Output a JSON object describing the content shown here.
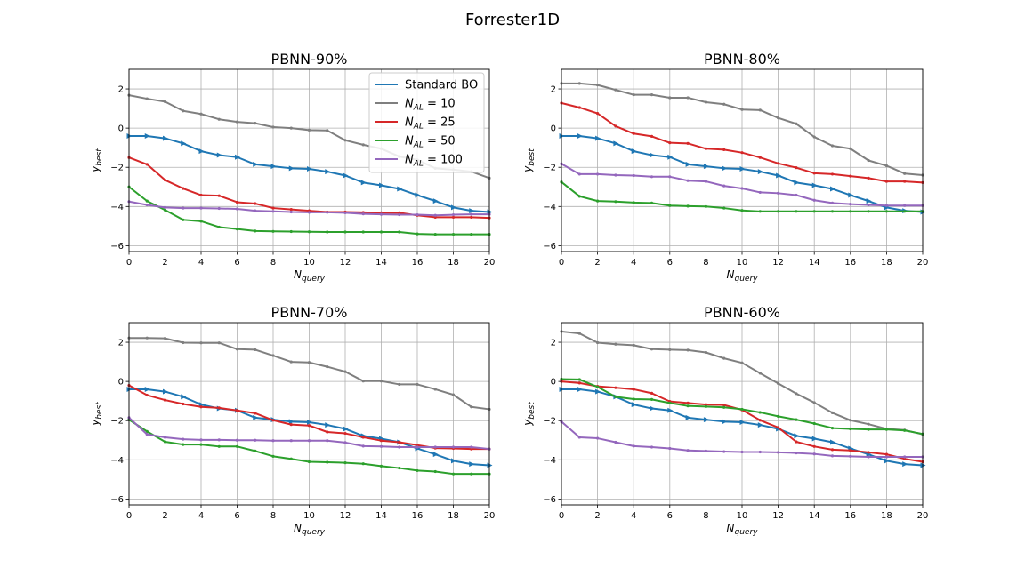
{
  "figure_title": "Forrester1D",
  "colors": {
    "standard_bo": "#1f77b4",
    "n10": "#7f7f7f",
    "n25": "#d62728",
    "n50": "#2ca02c",
    "n100": "#9467bd",
    "grid": "#b0b0b0"
  },
  "chart_data": [
    {
      "type": "line",
      "title": "PBNN-90%",
      "xlabel": "N_query",
      "ylabel": "y_best",
      "xlim": [
        0,
        20
      ],
      "ylim": [
        -6.3,
        3.0
      ],
      "xticks": [
        0,
        2,
        4,
        6,
        8,
        10,
        12,
        14,
        16,
        18,
        20
      ],
      "yticks": [
        -6,
        -4,
        -2,
        0,
        2
      ],
      "grid": true,
      "legend": "top-right",
      "x": [
        0,
        1,
        2,
        3,
        4,
        5,
        6,
        7,
        8,
        9,
        10,
        11,
        12,
        13,
        14,
        15,
        16,
        17,
        18,
        19,
        20
      ],
      "series": [
        {
          "key": "standard_bo",
          "name": "Standard BO",
          "marker": "triangle",
          "values": [
            -0.4,
            -0.4,
            -0.52,
            -0.78,
            -1.18,
            -1.38,
            -1.48,
            -1.85,
            -1.95,
            -2.05,
            -2.08,
            -2.22,
            -2.42,
            -2.78,
            -2.92,
            -3.1,
            -3.42,
            -3.72,
            -4.05,
            -4.22,
            -4.28
          ]
        },
        {
          "key": "n10",
          "name": "N_AL = 10",
          "marker": "dot",
          "values": [
            1.68,
            1.5,
            1.35,
            0.88,
            0.72,
            0.45,
            0.32,
            0.25,
            0.05,
            0.0,
            -0.1,
            -0.12,
            -0.62,
            -0.85,
            -1.05,
            -1.45,
            -1.62,
            -2.05,
            -2.12,
            -2.22,
            -2.55
          ]
        },
        {
          "key": "n25",
          "name": "N_AL = 25",
          "marker": "dot",
          "values": [
            -1.5,
            -1.85,
            -2.65,
            -3.08,
            -3.42,
            -3.45,
            -3.78,
            -3.85,
            -4.08,
            -4.15,
            -4.22,
            -4.28,
            -4.28,
            -4.3,
            -4.32,
            -4.32,
            -4.45,
            -4.55,
            -4.55,
            -4.55,
            -4.58
          ]
        },
        {
          "key": "n50",
          "name": "N_AL = 50",
          "marker": "dot",
          "values": [
            -3.0,
            -3.72,
            -4.18,
            -4.68,
            -4.75,
            -5.05,
            -5.15,
            -5.25,
            -5.27,
            -5.28,
            -5.29,
            -5.3,
            -5.3,
            -5.3,
            -5.3,
            -5.3,
            -5.4,
            -5.42,
            -5.42,
            -5.42,
            -5.42
          ]
        },
        {
          "key": "n100",
          "name": "N_AL = 100",
          "marker": "dot",
          "values": [
            -3.75,
            -3.92,
            -4.05,
            -4.08,
            -4.08,
            -4.1,
            -4.12,
            -4.22,
            -4.25,
            -4.28,
            -4.3,
            -4.3,
            -4.32,
            -4.38,
            -4.4,
            -4.42,
            -4.42,
            -4.45,
            -4.42,
            -4.4,
            -4.4
          ]
        }
      ]
    },
    {
      "type": "line",
      "title": "PBNN-80%",
      "xlabel": "N_query",
      "ylabel": "y_best",
      "xlim": [
        0,
        20
      ],
      "ylim": [
        -6.3,
        3.0
      ],
      "xticks": [
        0,
        2,
        4,
        6,
        8,
        10,
        12,
        14,
        16,
        18,
        20
      ],
      "yticks": [
        -6,
        -4,
        -2,
        0,
        2
      ],
      "grid": true,
      "x": [
        0,
        1,
        2,
        3,
        4,
        5,
        6,
        7,
        8,
        9,
        10,
        11,
        12,
        13,
        14,
        15,
        16,
        17,
        18,
        19,
        20
      ],
      "series": [
        {
          "key": "standard_bo",
          "name": "Standard BO",
          "marker": "triangle",
          "values": [
            -0.4,
            -0.4,
            -0.52,
            -0.78,
            -1.18,
            -1.38,
            -1.48,
            -1.85,
            -1.95,
            -2.05,
            -2.08,
            -2.22,
            -2.42,
            -2.78,
            -2.92,
            -3.1,
            -3.42,
            -3.72,
            -4.05,
            -4.22,
            -4.28
          ]
        },
        {
          "key": "n10",
          "name": "N_AL = 10",
          "marker": "dot",
          "values": [
            2.28,
            2.28,
            2.2,
            1.95,
            1.7,
            1.7,
            1.55,
            1.55,
            1.32,
            1.22,
            0.95,
            0.92,
            0.52,
            0.22,
            -0.45,
            -0.9,
            -1.05,
            -1.65,
            -1.92,
            -2.32,
            -2.4
          ]
        },
        {
          "key": "n25",
          "name": "N_AL = 25",
          "marker": "dot",
          "values": [
            1.28,
            1.05,
            0.75,
            0.1,
            -0.28,
            -0.42,
            -0.75,
            -0.78,
            -1.05,
            -1.1,
            -1.25,
            -1.5,
            -1.8,
            -2.02,
            -2.3,
            -2.35,
            -2.45,
            -2.55,
            -2.72,
            -2.72,
            -2.78
          ]
        },
        {
          "key": "n50",
          "name": "N_AL = 50",
          "marker": "dot",
          "values": [
            -2.75,
            -3.48,
            -3.72,
            -3.75,
            -3.8,
            -3.82,
            -3.95,
            -3.98,
            -4.0,
            -4.08,
            -4.2,
            -4.25,
            -4.25,
            -4.25,
            -4.25,
            -4.25,
            -4.25,
            -4.25,
            -4.25,
            -4.25,
            -4.25
          ]
        },
        {
          "key": "n100",
          "name": "N_AL = 100",
          "marker": "dot",
          "values": [
            -1.82,
            -2.35,
            -2.35,
            -2.4,
            -2.42,
            -2.48,
            -2.48,
            -2.68,
            -2.72,
            -2.95,
            -3.08,
            -3.28,
            -3.32,
            -3.42,
            -3.68,
            -3.82,
            -3.88,
            -3.92,
            -3.95,
            -3.95,
            -3.95
          ]
        }
      ]
    },
    {
      "type": "line",
      "title": "PBNN-70%",
      "xlabel": "N_query",
      "ylabel": "y_best",
      "xlim": [
        0,
        20
      ],
      "ylim": [
        -6.3,
        3.0
      ],
      "xticks": [
        0,
        2,
        4,
        6,
        8,
        10,
        12,
        14,
        16,
        18,
        20
      ],
      "yticks": [
        -6,
        -4,
        -2,
        0,
        2
      ],
      "grid": true,
      "x": [
        0,
        1,
        2,
        3,
        4,
        5,
        6,
        7,
        8,
        9,
        10,
        11,
        12,
        13,
        14,
        15,
        16,
        17,
        18,
        19,
        20
      ],
      "series": [
        {
          "key": "standard_bo",
          "name": "Standard BO",
          "marker": "triangle",
          "values": [
            -0.4,
            -0.4,
            -0.52,
            -0.78,
            -1.18,
            -1.38,
            -1.48,
            -1.85,
            -1.95,
            -2.05,
            -2.08,
            -2.22,
            -2.42,
            -2.78,
            -2.92,
            -3.1,
            -3.42,
            -3.72,
            -4.05,
            -4.22,
            -4.28
          ]
        },
        {
          "key": "n10",
          "name": "N_AL = 10",
          "marker": "dot",
          "values": [
            2.22,
            2.22,
            2.2,
            1.98,
            1.97,
            1.97,
            1.65,
            1.62,
            1.32,
            1.0,
            0.97,
            0.75,
            0.5,
            0.02,
            0.02,
            -0.15,
            -0.15,
            -0.4,
            -0.68,
            -1.3,
            -1.42
          ]
        },
        {
          "key": "n25",
          "name": "N_AL = 25",
          "marker": "dot",
          "values": [
            -0.2,
            -0.7,
            -0.95,
            -1.15,
            -1.3,
            -1.35,
            -1.48,
            -1.62,
            -1.98,
            -2.2,
            -2.25,
            -2.58,
            -2.65,
            -2.85,
            -3.02,
            -3.1,
            -3.25,
            -3.4,
            -3.42,
            -3.45,
            -3.45
          ]
        },
        {
          "key": "n50",
          "name": "N_AL = 50",
          "marker": "dot",
          "values": [
            -1.95,
            -2.55,
            -3.08,
            -3.22,
            -3.22,
            -3.32,
            -3.32,
            -3.55,
            -3.82,
            -3.95,
            -4.1,
            -4.12,
            -4.15,
            -4.2,
            -4.32,
            -4.42,
            -4.55,
            -4.6,
            -4.72,
            -4.72,
            -4.72
          ]
        },
        {
          "key": "n100",
          "name": "N_AL = 100",
          "marker": "dot",
          "values": [
            -1.85,
            -2.7,
            -2.85,
            -2.95,
            -2.98,
            -2.98,
            -3.0,
            -3.0,
            -3.02,
            -3.02,
            -3.02,
            -3.02,
            -3.12,
            -3.3,
            -3.32,
            -3.35,
            -3.35,
            -3.35,
            -3.35,
            -3.35,
            -3.45
          ]
        }
      ]
    },
    {
      "type": "line",
      "title": "PBNN-60%",
      "xlabel": "N_query",
      "ylabel": "y_best",
      "xlim": [
        0,
        20
      ],
      "ylim": [
        -6.3,
        3.0
      ],
      "xticks": [
        0,
        2,
        4,
        6,
        8,
        10,
        12,
        14,
        16,
        18,
        20
      ],
      "yticks": [
        -6,
        -4,
        -2,
        0,
        2
      ],
      "grid": true,
      "x": [
        0,
        1,
        2,
        3,
        4,
        5,
        6,
        7,
        8,
        9,
        10,
        11,
        12,
        13,
        14,
        15,
        16,
        17,
        18,
        19,
        20
      ],
      "series": [
        {
          "key": "standard_bo",
          "name": "Standard BO",
          "marker": "triangle",
          "values": [
            -0.4,
            -0.4,
            -0.52,
            -0.78,
            -1.18,
            -1.38,
            -1.48,
            -1.85,
            -1.95,
            -2.05,
            -2.08,
            -2.22,
            -2.42,
            -2.78,
            -2.92,
            -3.1,
            -3.42,
            -3.72,
            -4.05,
            -4.22,
            -4.28
          ]
        },
        {
          "key": "n10",
          "name": "N_AL = 10",
          "marker": "dot",
          "values": [
            2.55,
            2.45,
            1.98,
            1.9,
            1.85,
            1.65,
            1.62,
            1.6,
            1.48,
            1.18,
            0.95,
            0.42,
            -0.1,
            -0.62,
            -1.08,
            -1.6,
            -1.98,
            -2.18,
            -2.42,
            -2.48,
            -2.7
          ]
        },
        {
          "key": "n25",
          "name": "N_AL = 25",
          "marker": "dot",
          "values": [
            0.0,
            -0.08,
            -0.25,
            -0.32,
            -0.4,
            -0.6,
            -1.02,
            -1.1,
            -1.18,
            -1.2,
            -1.45,
            -1.98,
            -2.35,
            -3.08,
            -3.32,
            -3.48,
            -3.52,
            -3.62,
            -3.72,
            -3.95,
            -4.1
          ]
        },
        {
          "key": "n50",
          "name": "N_AL = 50",
          "marker": "dot",
          "values": [
            0.12,
            0.1,
            -0.28,
            -0.78,
            -0.9,
            -0.92,
            -1.1,
            -1.25,
            -1.28,
            -1.32,
            -1.42,
            -1.58,
            -1.78,
            -1.95,
            -2.15,
            -2.38,
            -2.42,
            -2.45,
            -2.45,
            -2.5,
            -2.68
          ]
        },
        {
          "key": "n100",
          "name": "N_AL = 100",
          "marker": "dot",
          "values": [
            -2.05,
            -2.85,
            -2.9,
            -3.1,
            -3.3,
            -3.35,
            -3.42,
            -3.52,
            -3.55,
            -3.58,
            -3.6,
            -3.6,
            -3.62,
            -3.65,
            -3.7,
            -3.8,
            -3.82,
            -3.85,
            -3.85,
            -3.85,
            -3.85
          ]
        }
      ]
    }
  ]
}
